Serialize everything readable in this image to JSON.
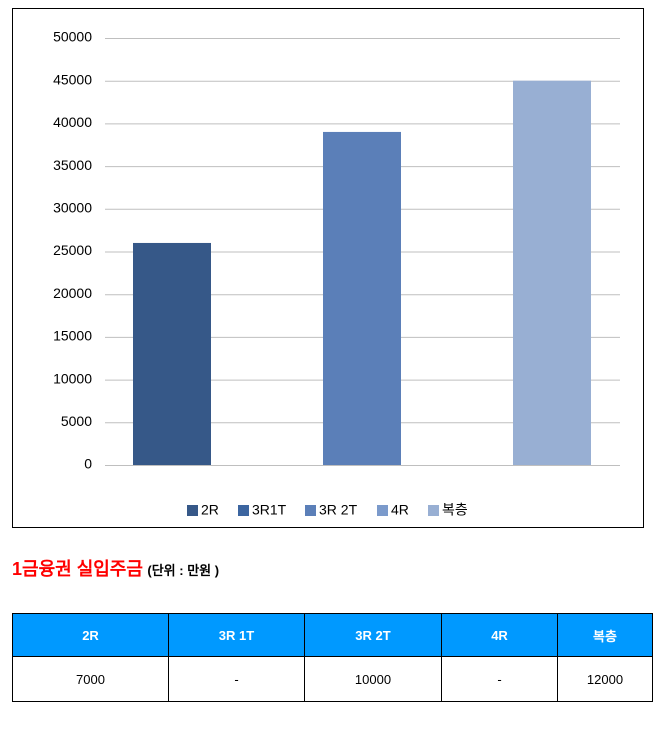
{
  "chart_data": {
    "type": "bar",
    "categories": [
      null
    ],
    "series": [
      {
        "name": "2R",
        "color": "#365888",
        "values": [
          26000
        ]
      },
      {
        "name": "3R1T",
        "color": "#3c65a0",
        "values": [
          null
        ]
      },
      {
        "name": "3R 2T",
        "color": "#5b7fb8",
        "values": [
          39000
        ]
      },
      {
        "name": "4R",
        "color": "#7b9acb",
        "values": [
          null
        ]
      },
      {
        "name": "복층",
        "color": "#98afd3",
        "values": [
          45000
        ]
      }
    ],
    "ylim": [
      0,
      50000
    ],
    "yticks": [
      0,
      5000,
      10000,
      15000,
      20000,
      25000,
      30000,
      35000,
      40000,
      45000,
      50000
    ],
    "grid": true,
    "legend": "bottom"
  },
  "heading": {
    "title": "1금융권 실입주금",
    "unit": "(단위 : 만원 )"
  },
  "table": {
    "header": [
      "2R",
      "3R 1T",
      "3R 2T",
      "4R",
      "복층"
    ],
    "rows": [
      [
        7000,
        "-",
        10000,
        "-",
        12000
      ]
    ]
  }
}
